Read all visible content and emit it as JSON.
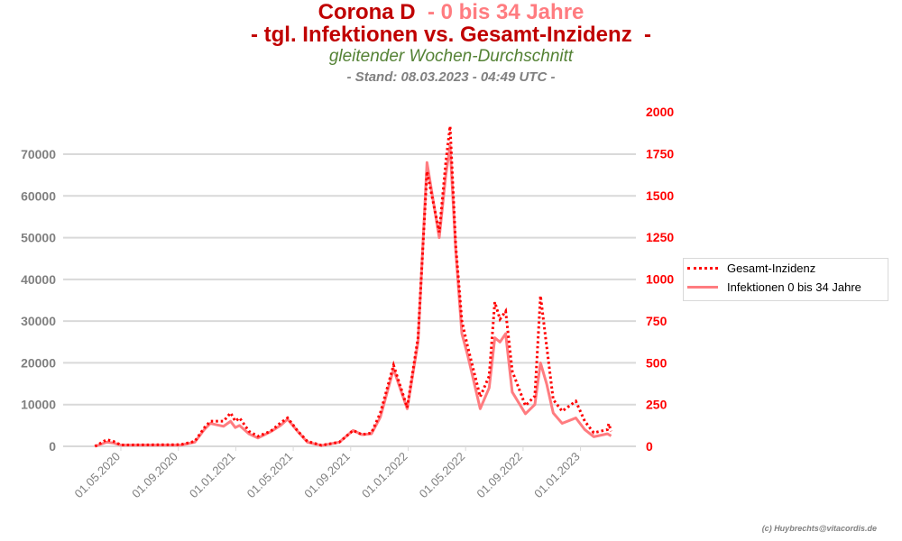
{
  "header": {
    "title_a": "Corona D ",
    "title_b": " - 0 bis 34 Jahre",
    "title2": "- tgl. Infektionen vs. Gesamt-Inzidenz  -",
    "subtitle": "gleitender Wochen-Durchschnitt",
    "stand": "- Stand: 08.03.2023 - 04:49 UTC -"
  },
  "credit": "(c) Huybrechts@vitacordis.de",
  "chart_data": {
    "type": "line",
    "title": "Corona D - 0 bis 34 Jahre - tgl. Infektionen vs. Gesamt-Inzidenz -",
    "colors": {
      "inzidenz": "#ff0000",
      "infektionen": "#ff7c80",
      "left_axis": "#808080",
      "right_axis": "#ff0000"
    },
    "y_left": {
      "range": [
        0,
        75000
      ],
      "ticks": [
        "0",
        "10000",
        "20000",
        "30000",
        "40000",
        "50000",
        "60000",
        "70000"
      ]
    },
    "y_right": {
      "range": [
        0,
        2000
      ],
      "ticks": [
        "0",
        "250",
        "500",
        "750",
        "1000",
        "1250",
        "1500",
        "1750",
        "2000"
      ]
    },
    "x_ticks": [
      "01.05.2020",
      "01.09.2020",
      "01.01.2021",
      "01.05.2021",
      "01.09.2021",
      "01.01.2022",
      "01.05.2022",
      "01.09.2022",
      "01.01.2023"
    ],
    "grid": true,
    "legend_position": "right",
    "series": [
      {
        "name": "Gesamt-Inzidenz",
        "axis": "right",
        "style": "dotted",
        "points": [
          [
            "2020-03-07",
            0
          ],
          [
            "2020-04-01",
            40
          ],
          [
            "2020-04-15",
            30
          ],
          [
            "2020-05-01",
            8
          ],
          [
            "2020-09-05",
            10
          ],
          [
            "2020-10-05",
            30
          ],
          [
            "2020-10-25",
            110
          ],
          [
            "2020-11-07",
            150
          ],
          [
            "2020-12-05",
            150
          ],
          [
            "2020-12-20",
            200
          ],
          [
            "2020-12-30",
            150
          ],
          [
            "2021-01-08",
            170
          ],
          [
            "2021-01-28",
            90
          ],
          [
            "2021-02-16",
            60
          ],
          [
            "2021-03-15",
            90
          ],
          [
            "2021-04-05",
            140
          ],
          [
            "2021-04-20",
            170
          ],
          [
            "2021-05-12",
            90
          ],
          [
            "2021-06-01",
            30
          ],
          [
            "2021-07-01",
            6
          ],
          [
            "2021-08-08",
            25
          ],
          [
            "2021-09-06",
            95
          ],
          [
            "2021-09-25",
            70
          ],
          [
            "2021-10-15",
            80
          ],
          [
            "2021-11-03",
            200
          ],
          [
            "2021-12-01",
            485
          ],
          [
            "2021-12-30",
            232
          ],
          [
            "2022-01-22",
            650
          ],
          [
            "2022-02-10",
            1644
          ],
          [
            "2022-03-08",
            1280
          ],
          [
            "2022-03-22",
            1700
          ],
          [
            "2022-03-31",
            1914
          ],
          [
            "2022-04-12",
            1200
          ],
          [
            "2022-04-25",
            750
          ],
          [
            "2022-05-07",
            600
          ],
          [
            "2022-06-03",
            296
          ],
          [
            "2022-06-22",
            420
          ],
          [
            "2022-07-04",
            862
          ],
          [
            "2022-07-15",
            760
          ],
          [
            "2022-07-27",
            808
          ],
          [
            "2022-08-10",
            450
          ],
          [
            "2022-09-07",
            243
          ],
          [
            "2022-09-27",
            300
          ],
          [
            "2022-10-09",
            900
          ],
          [
            "2022-10-22",
            600
          ],
          [
            "2022-11-05",
            280
          ],
          [
            "2022-11-24",
            210
          ],
          [
            "2022-12-23",
            270
          ],
          [
            "2023-01-11",
            150
          ],
          [
            "2023-01-30",
            81
          ],
          [
            "2023-02-28",
            100
          ],
          [
            "2023-03-03",
            135
          ],
          [
            "2023-03-08",
            90
          ]
        ]
      },
      {
        "name": "Infektionen 0 bis 34 Jahre",
        "axis": "left",
        "style": "solid",
        "points": [
          [
            "2020-03-07",
            0
          ],
          [
            "2020-04-01",
            1000
          ],
          [
            "2020-04-15",
            800
          ],
          [
            "2020-05-01",
            300
          ],
          [
            "2020-09-05",
            300
          ],
          [
            "2020-10-05",
            1000
          ],
          [
            "2020-10-25",
            4000
          ],
          [
            "2020-11-07",
            5500
          ],
          [
            "2020-12-05",
            4800
          ],
          [
            "2020-12-20",
            6000
          ],
          [
            "2020-12-30",
            4500
          ],
          [
            "2021-01-08",
            5000
          ],
          [
            "2021-01-28",
            3000
          ],
          [
            "2021-02-16",
            2000
          ],
          [
            "2021-03-15",
            3500
          ],
          [
            "2021-04-05",
            5000
          ],
          [
            "2021-04-20",
            6500
          ],
          [
            "2021-05-12",
            3500
          ],
          [
            "2021-06-01",
            1000
          ],
          [
            "2021-07-01",
            200
          ],
          [
            "2021-08-08",
            1000
          ],
          [
            "2021-09-06",
            3800
          ],
          [
            "2021-09-25",
            2800
          ],
          [
            "2021-10-15",
            3000
          ],
          [
            "2021-11-03",
            7000
          ],
          [
            "2021-12-01",
            18500
          ],
          [
            "2021-12-30",
            9000
          ],
          [
            "2022-01-22",
            25000
          ],
          [
            "2022-02-10",
            68000
          ],
          [
            "2022-03-08",
            50000
          ],
          [
            "2022-03-22",
            65000
          ],
          [
            "2022-03-31",
            72000
          ],
          [
            "2022-04-12",
            47000
          ],
          [
            "2022-04-25",
            27000
          ],
          [
            "2022-05-07",
            22000
          ],
          [
            "2022-06-03",
            9000
          ],
          [
            "2022-06-22",
            14000
          ],
          [
            "2022-07-04",
            26000
          ],
          [
            "2022-07-15",
            25000
          ],
          [
            "2022-07-27",
            27000
          ],
          [
            "2022-08-10",
            13000
          ],
          [
            "2022-09-07",
            7800
          ],
          [
            "2022-09-27",
            10000
          ],
          [
            "2022-10-09",
            20000
          ],
          [
            "2022-10-22",
            15000
          ],
          [
            "2022-11-05",
            8000
          ],
          [
            "2022-11-24",
            5500
          ],
          [
            "2022-12-23",
            6800
          ],
          [
            "2023-01-11",
            4000
          ],
          [
            "2023-01-30",
            2300
          ],
          [
            "2023-02-28",
            3000
          ],
          [
            "2023-03-08",
            2500
          ]
        ]
      }
    ]
  }
}
